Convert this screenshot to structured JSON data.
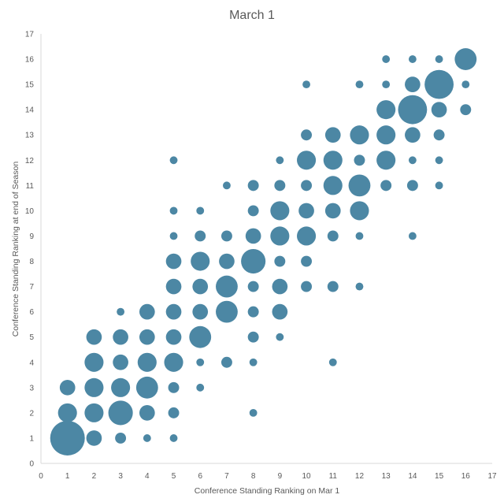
{
  "chart_data": {
    "type": "scatter",
    "subtype": "bubble",
    "title": "March 1",
    "xlabel": "Conference Standing Ranking on Mar 1",
    "ylabel": "Conference Standing Ranking at end of Season",
    "xlim": [
      0,
      17
    ],
    "ylim": [
      0,
      17
    ],
    "xticks": [
      0,
      1,
      2,
      3,
      4,
      5,
      6,
      7,
      8,
      9,
      10,
      11,
      12,
      13,
      14,
      15,
      16,
      17
    ],
    "yticks": [
      0,
      1,
      2,
      3,
      4,
      5,
      6,
      7,
      8,
      9,
      10,
      11,
      12,
      13,
      14,
      15,
      16,
      17
    ],
    "grid": false,
    "legend": "none",
    "color": "#4C87A4",
    "points": [
      {
        "x": 1,
        "y": 1,
        "size": 10
      },
      {
        "x": 1,
        "y": 2,
        "size": 3
      },
      {
        "x": 1,
        "y": 3,
        "size": 2
      },
      {
        "x": 2,
        "y": 1,
        "size": 2
      },
      {
        "x": 2,
        "y": 2,
        "size": 3
      },
      {
        "x": 2,
        "y": 3,
        "size": 3
      },
      {
        "x": 2,
        "y": 4,
        "size": 3
      },
      {
        "x": 2,
        "y": 5,
        "size": 2
      },
      {
        "x": 3,
        "y": 1,
        "size": 1
      },
      {
        "x": 3,
        "y": 2,
        "size": 5
      },
      {
        "x": 3,
        "y": 3,
        "size": 3
      },
      {
        "x": 3,
        "y": 4,
        "size": 2
      },
      {
        "x": 3,
        "y": 5,
        "size": 2
      },
      {
        "x": 3,
        "y": 6,
        "size": 0.5
      },
      {
        "x": 4,
        "y": 1,
        "size": 0.5
      },
      {
        "x": 4,
        "y": 2,
        "size": 2
      },
      {
        "x": 4,
        "y": 3,
        "size": 4
      },
      {
        "x": 4,
        "y": 4,
        "size": 3
      },
      {
        "x": 4,
        "y": 5,
        "size": 2
      },
      {
        "x": 4,
        "y": 6,
        "size": 2
      },
      {
        "x": 5,
        "y": 1,
        "size": 0.5
      },
      {
        "x": 5,
        "y": 2,
        "size": 1
      },
      {
        "x": 5,
        "y": 3,
        "size": 1
      },
      {
        "x": 5,
        "y": 4,
        "size": 3
      },
      {
        "x": 5,
        "y": 5,
        "size": 2
      },
      {
        "x": 5,
        "y": 6,
        "size": 2
      },
      {
        "x": 5,
        "y": 7,
        "size": 2
      },
      {
        "x": 5,
        "y": 8,
        "size": 2
      },
      {
        "x": 5,
        "y": 9,
        "size": 0.5
      },
      {
        "x": 5,
        "y": 10,
        "size": 0.5
      },
      {
        "x": 5,
        "y": 12,
        "size": 0.5
      },
      {
        "x": 6,
        "y": 3,
        "size": 0.5
      },
      {
        "x": 6,
        "y": 4,
        "size": 0.5
      },
      {
        "x": 6,
        "y": 5,
        "size": 4
      },
      {
        "x": 6,
        "y": 6,
        "size": 2
      },
      {
        "x": 6,
        "y": 7,
        "size": 2
      },
      {
        "x": 6,
        "y": 8,
        "size": 3
      },
      {
        "x": 6,
        "y": 9,
        "size": 1
      },
      {
        "x": 6,
        "y": 10,
        "size": 0.5
      },
      {
        "x": 7,
        "y": 4,
        "size": 1
      },
      {
        "x": 7,
        "y": 6,
        "size": 4
      },
      {
        "x": 7,
        "y": 7,
        "size": 4
      },
      {
        "x": 7,
        "y": 8,
        "size": 2
      },
      {
        "x": 7,
        "y": 9,
        "size": 1
      },
      {
        "x": 7,
        "y": 11,
        "size": 0.5
      },
      {
        "x": 8,
        "y": 2,
        "size": 0.5
      },
      {
        "x": 8,
        "y": 4,
        "size": 0.5
      },
      {
        "x": 8,
        "y": 5,
        "size": 1
      },
      {
        "x": 8,
        "y": 6,
        "size": 1
      },
      {
        "x": 8,
        "y": 7,
        "size": 1
      },
      {
        "x": 8,
        "y": 8,
        "size": 5
      },
      {
        "x": 8,
        "y": 9,
        "size": 2
      },
      {
        "x": 8,
        "y": 10,
        "size": 1
      },
      {
        "x": 8,
        "y": 11,
        "size": 1
      },
      {
        "x": 9,
        "y": 5,
        "size": 0.5
      },
      {
        "x": 9,
        "y": 6,
        "size": 2
      },
      {
        "x": 9,
        "y": 7,
        "size": 2
      },
      {
        "x": 9,
        "y": 8,
        "size": 1
      },
      {
        "x": 9,
        "y": 9,
        "size": 3
      },
      {
        "x": 9,
        "y": 10,
        "size": 3
      },
      {
        "x": 9,
        "y": 11,
        "size": 1
      },
      {
        "x": 9,
        "y": 12,
        "size": 0.5
      },
      {
        "x": 10,
        "y": 7,
        "size": 1
      },
      {
        "x": 10,
        "y": 8,
        "size": 1
      },
      {
        "x": 10,
        "y": 9,
        "size": 3
      },
      {
        "x": 10,
        "y": 10,
        "size": 2
      },
      {
        "x": 10,
        "y": 11,
        "size": 1
      },
      {
        "x": 10,
        "y": 12,
        "size": 3
      },
      {
        "x": 10,
        "y": 13,
        "size": 1
      },
      {
        "x": 10,
        "y": 15,
        "size": 0.5
      },
      {
        "x": 11,
        "y": 4,
        "size": 0.5
      },
      {
        "x": 11,
        "y": 7,
        "size": 1
      },
      {
        "x": 11,
        "y": 9,
        "size": 1
      },
      {
        "x": 11,
        "y": 10,
        "size": 2
      },
      {
        "x": 11,
        "y": 11,
        "size": 3
      },
      {
        "x": 11,
        "y": 12,
        "size": 3
      },
      {
        "x": 11,
        "y": 13,
        "size": 2
      },
      {
        "x": 12,
        "y": 7,
        "size": 0.5
      },
      {
        "x": 12,
        "y": 9,
        "size": 0.5
      },
      {
        "x": 12,
        "y": 10,
        "size": 3
      },
      {
        "x": 12,
        "y": 11,
        "size": 4
      },
      {
        "x": 12,
        "y": 12,
        "size": 1
      },
      {
        "x": 12,
        "y": 13,
        "size": 3
      },
      {
        "x": 12,
        "y": 15,
        "size": 0.5
      },
      {
        "x": 13,
        "y": 11,
        "size": 1
      },
      {
        "x": 13,
        "y": 12,
        "size": 3
      },
      {
        "x": 13,
        "y": 13,
        "size": 3
      },
      {
        "x": 13,
        "y": 14,
        "size": 3
      },
      {
        "x": 13,
        "y": 15,
        "size": 0.5
      },
      {
        "x": 13,
        "y": 16,
        "size": 0.5
      },
      {
        "x": 14,
        "y": 9,
        "size": 0.5
      },
      {
        "x": 14,
        "y": 11,
        "size": 1
      },
      {
        "x": 14,
        "y": 12,
        "size": 0.5
      },
      {
        "x": 14,
        "y": 13,
        "size": 2
      },
      {
        "x": 14,
        "y": 14,
        "size": 7
      },
      {
        "x": 14,
        "y": 15,
        "size": 2
      },
      {
        "x": 14,
        "y": 16,
        "size": 0.5
      },
      {
        "x": 15,
        "y": 11,
        "size": 0.5
      },
      {
        "x": 15,
        "y": 12,
        "size": 0.5
      },
      {
        "x": 15,
        "y": 13,
        "size": 1
      },
      {
        "x": 15,
        "y": 14,
        "size": 2
      },
      {
        "x": 15,
        "y": 15,
        "size": 7
      },
      {
        "x": 15,
        "y": 16,
        "size": 0.5
      },
      {
        "x": 16,
        "y": 14,
        "size": 1
      },
      {
        "x": 16,
        "y": 15,
        "size": 0.5
      },
      {
        "x": 16,
        "y": 16,
        "size": 4
      }
    ]
  }
}
